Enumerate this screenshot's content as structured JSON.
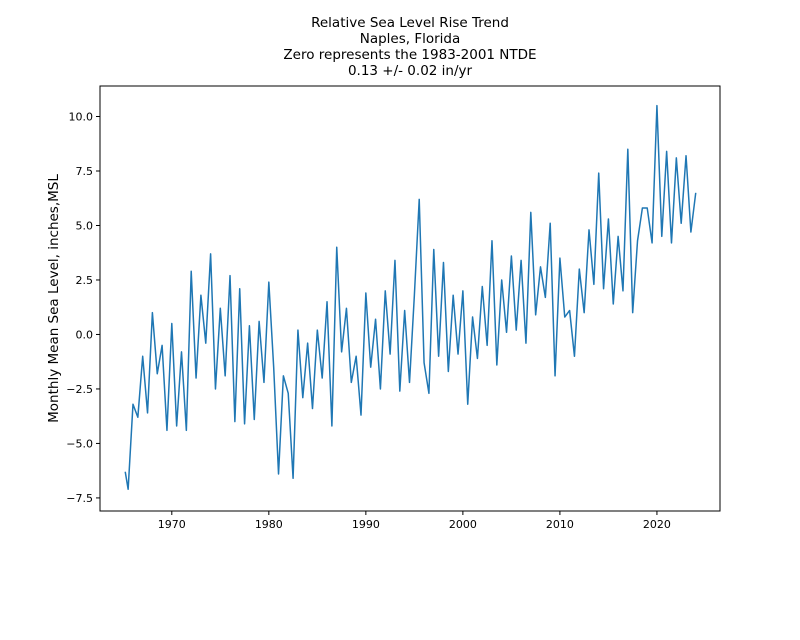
{
  "chart_data": {
    "type": "line",
    "title_lines": [
      "Relative Sea Level Rise Trend",
      "Naples, Florida",
      "Zero represents the 1983-2001 NTDE",
      "0.13 +/- 0.02 in/yr"
    ],
    "xlabel": "",
    "ylabel": "Monthly Mean Sea Level, inches,MSL",
    "xlim": [
      1962.6,
      2026.5
    ],
    "ylim": [
      -8.1,
      11.4
    ],
    "xticks": [
      1970,
      1980,
      1990,
      2000,
      2010,
      2020
    ],
    "xtick_labels": [
      "1970",
      "1980",
      "1990",
      "2000",
      "2010",
      "2020"
    ],
    "yticks": [
      -7.5,
      -5.0,
      -2.5,
      0.0,
      2.5,
      5.0,
      7.5,
      10.0
    ],
    "ytick_labels": [
      "−7.5",
      "−5.0",
      "−2.5",
      "0.0",
      "2.5",
      "5.0",
      "7.5",
      "10.0"
    ],
    "grid": false,
    "line_color": "#1f77b4",
    "series": [
      {
        "x": [
          1965.2,
          1965.5,
          1966.0,
          1966.5,
          1967.0,
          1967.5,
          1968.0,
          1968.5,
          1969.0,
          1969.5,
          1970.0,
          1970.5,
          1971.0,
          1971.5,
          1972.0,
          1972.5,
          1973.0,
          1973.5,
          1974.0,
          1974.5,
          1975.0,
          1975.5,
          1976.0,
          1976.5,
          1977.0,
          1977.5,
          1978.0,
          1978.5,
          1979.0,
          1979.5,
          1980.0,
          1980.5,
          1981.0,
          1981.5,
          1982.0,
          1982.5,
          1983.0,
          1983.5,
          1984.0,
          1984.5,
          1985.0,
          1985.5,
          1986.0,
          1986.5,
          1987.0,
          1987.5,
          1988.0,
          1988.5,
          1989.0,
          1989.5,
          1990.0,
          1990.5,
          1991.0,
          1991.5,
          1992.0,
          1992.5,
          1993.0,
          1993.5,
          1994.0,
          1994.5,
          1995.0,
          1995.5,
          1996.0,
          1996.5,
          1997.0,
          1997.5,
          1998.0,
          1998.5,
          1999.0,
          1999.5,
          2000.0,
          2000.5,
          2001.0,
          2001.5,
          2002.0,
          2002.5,
          2003.0,
          2003.5,
          2004.0,
          2004.5,
          2005.0,
          2005.5,
          2006.0,
          2006.5,
          2007.0,
          2007.5,
          2008.0,
          2008.5,
          2009.0,
          2009.5,
          2010.0,
          2010.5,
          2011.0,
          2011.5,
          2012.0,
          2012.5,
          2013.0,
          2013.5,
          2014.0,
          2014.5,
          2015.0,
          2015.5,
          2016.0,
          2016.5,
          2017.0,
          2017.5,
          2018.0,
          2018.5,
          2019.0,
          2019.5,
          2020.0,
          2020.5,
          2021.0,
          2021.5,
          2022.0,
          2022.5,
          2023.0,
          2023.5,
          2024.0
        ],
        "y": [
          -6.3,
          -7.1,
          -3.2,
          -3.8,
          -1.0,
          -3.6,
          1.0,
          -1.8,
          -0.5,
          -4.4,
          0.5,
          -4.2,
          -0.8,
          -4.4,
          2.9,
          -2.0,
          1.8,
          -0.4,
          3.7,
          -2.5,
          1.2,
          -1.9,
          2.7,
          -4.0,
          2.1,
          -4.1,
          0.4,
          -3.9,
          0.6,
          -2.2,
          2.4,
          -1.5,
          -6.4,
          -1.9,
          -2.7,
          -6.6,
          0.2,
          -2.9,
          -0.4,
          -3.4,
          0.2,
          -2.0,
          1.5,
          -4.2,
          4.0,
          -0.8,
          1.2,
          -2.2,
          -1.0,
          -3.7,
          1.9,
          -1.5,
          0.7,
          -2.5,
          2.0,
          -0.9,
          3.4,
          -2.6,
          1.1,
          -2.2,
          1.8,
          6.2,
          -1.3,
          -2.7,
          3.9,
          -1.0,
          3.3,
          -1.7,
          1.8,
          -0.9,
          2.0,
          -3.2,
          0.8,
          -1.1,
          2.2,
          -0.5,
          4.3,
          -1.4,
          2.5,
          0.1,
          3.6,
          0.2,
          3.4,
          -0.4,
          5.6,
          0.9,
          3.1,
          1.7,
          5.1,
          -1.9,
          3.5,
          0.8,
          1.1,
          -1.0,
          3.0,
          1.0,
          4.8,
          2.3,
          7.4,
          2.1,
          5.3,
          1.4,
          4.5,
          2.0,
          8.5,
          1.0,
          4.3,
          5.8,
          5.8,
          4.2,
          10.5,
          4.5,
          8.4,
          4.2,
          8.1,
          5.1,
          8.2,
          4.7,
          6.5
        ]
      }
    ]
  }
}
